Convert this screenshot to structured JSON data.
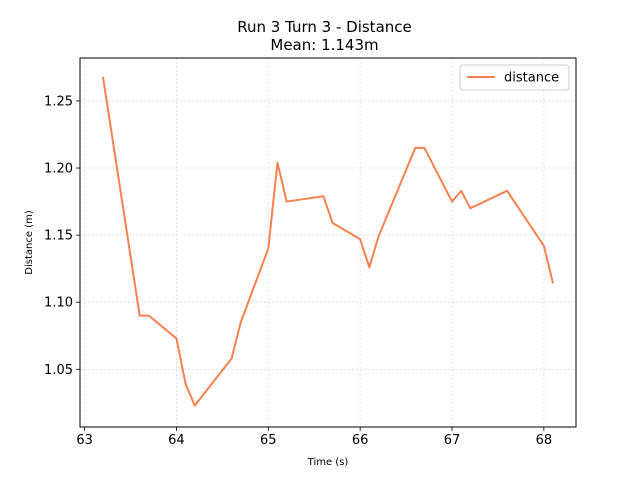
{
  "chart_data": {
    "type": "line",
    "title": "Run 3 Turn 3 - Distance",
    "subtitle": "Mean: 1.143m",
    "xlabel": "Time (s)",
    "ylabel": "Distance (m)",
    "xlim": [
      62.95,
      68.35
    ],
    "ylim": [
      1.007,
      1.282
    ],
    "xticks": [
      63,
      64,
      65,
      66,
      67,
      68
    ],
    "yticks": [
      1.05,
      1.1,
      1.15,
      1.2,
      1.25
    ],
    "ytick_labels": [
      "1.05",
      "1.10",
      "1.15",
      "1.20",
      "1.25"
    ],
    "grid": true,
    "legend_position": "top-right",
    "series": [
      {
        "name": "distance",
        "color": "#f4814f",
        "x": [
          63.2,
          63.6,
          63.7,
          64.0,
          64.1,
          64.2,
          64.6,
          64.7,
          65.0,
          65.1,
          65.2,
          65.6,
          65.7,
          66.0,
          66.1,
          66.2,
          66.6,
          66.7,
          67.0,
          67.1,
          67.2,
          67.6,
          68.0,
          68.1
        ],
        "y": [
          1.268,
          1.09,
          1.09,
          1.073,
          1.039,
          1.023,
          1.058,
          1.085,
          1.14,
          1.204,
          1.175,
          1.179,
          1.159,
          1.147,
          1.126,
          1.149,
          1.215,
          1.215,
          1.175,
          1.183,
          1.17,
          1.183,
          1.142,
          1.114
        ]
      }
    ]
  }
}
